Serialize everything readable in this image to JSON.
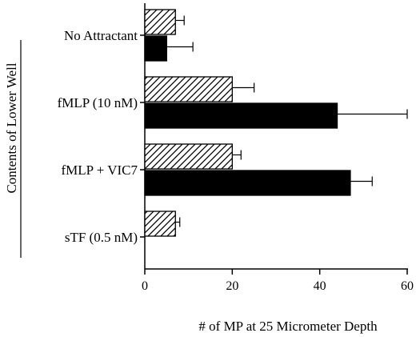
{
  "chart_data": {
    "type": "bar",
    "orientation": "horizontal",
    "categories": [
      "No Attractant",
      "fMLP (10 nM)",
      "fMLP + VIC7",
      "sTF (0.5 nM)"
    ],
    "series": [
      {
        "pattern": "diagonal-hatch",
        "values": [
          7,
          20,
          20,
          7
        ],
        "errors": [
          2,
          5,
          2,
          1
        ]
      },
      {
        "pattern": "solid-black",
        "values": [
          5,
          44,
          47,
          null
        ],
        "errors": [
          6,
          16,
          5,
          null
        ]
      }
    ],
    "xlabel": "# of MP at 25 Micrometer Depth",
    "ylabel": "Contents of Lower Well",
    "xlim": [
      0,
      60
    ],
    "xticks": [
      0,
      20,
      40,
      60
    ],
    "grid": false,
    "legend": "none"
  }
}
